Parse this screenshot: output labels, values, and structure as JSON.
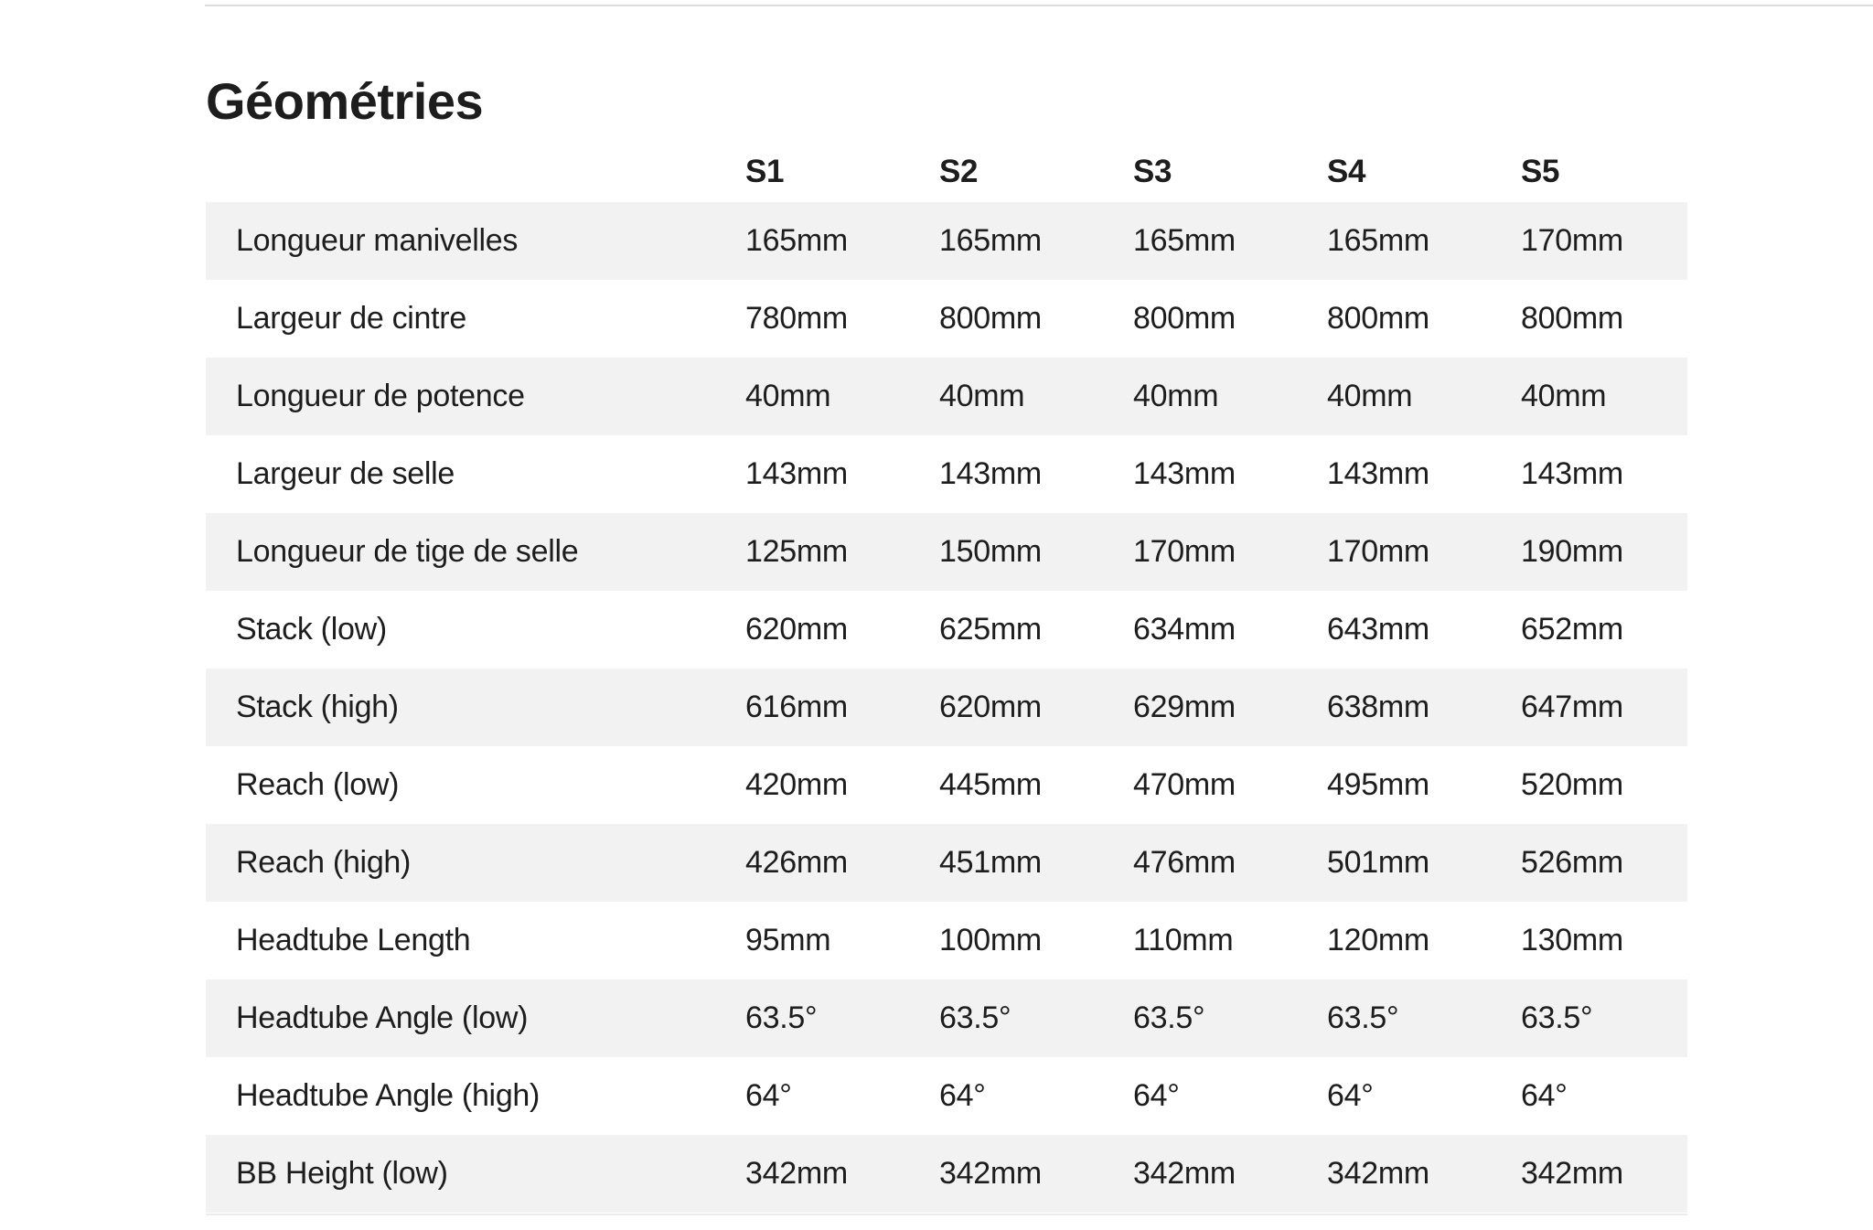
{
  "page": {
    "title": "Géométries"
  },
  "table": {
    "columns": [
      "S1",
      "S2",
      "S3",
      "S4",
      "S5"
    ],
    "rows": [
      {
        "label": "Longueur manivelles",
        "values": [
          "165mm",
          "165mm",
          "165mm",
          "165mm",
          "170mm"
        ]
      },
      {
        "label": "Largeur de cintre",
        "values": [
          "780mm",
          "800mm",
          "800mm",
          "800mm",
          "800mm"
        ]
      },
      {
        "label": "Longueur de potence",
        "values": [
          "40mm",
          "40mm",
          "40mm",
          "40mm",
          "40mm"
        ]
      },
      {
        "label": "Largeur de selle",
        "values": [
          "143mm",
          "143mm",
          "143mm",
          "143mm",
          "143mm"
        ]
      },
      {
        "label": "Longueur de tige de selle",
        "values": [
          "125mm",
          "150mm",
          "170mm",
          "170mm",
          "190mm"
        ]
      },
      {
        "label": "Stack (low)",
        "values": [
          "620mm",
          "625mm",
          "634mm",
          "643mm",
          "652mm"
        ]
      },
      {
        "label": "Stack (high)",
        "values": [
          "616mm",
          "620mm",
          "629mm",
          "638mm",
          "647mm"
        ]
      },
      {
        "label": "Reach (low)",
        "values": [
          "420mm",
          "445mm",
          "470mm",
          "495mm",
          "520mm"
        ]
      },
      {
        "label": "Reach (high)",
        "values": [
          "426mm",
          "451mm",
          "476mm",
          "501mm",
          "526mm"
        ]
      },
      {
        "label": "Headtube Length",
        "values": [
          "95mm",
          "100mm",
          "110mm",
          "120mm",
          "130mm"
        ]
      },
      {
        "label": "Headtube Angle (low)",
        "values": [
          "63.5°",
          "63.5°",
          "63.5°",
          "63.5°",
          "63.5°"
        ]
      },
      {
        "label": "Headtube Angle (high)",
        "values": [
          "64°",
          "64°",
          "64°",
          "64°",
          "64°"
        ]
      },
      {
        "label": "BB Height (low)",
        "values": [
          "342mm",
          "342mm",
          "342mm",
          "342mm",
          "342mm"
        ]
      }
    ]
  },
  "colors": {
    "text": "#1d1d1d",
    "stripe": "#f2f2f2",
    "divider_top": "#dcdcdc",
    "divider_bottom": "#ececec",
    "background": "#ffffff"
  }
}
